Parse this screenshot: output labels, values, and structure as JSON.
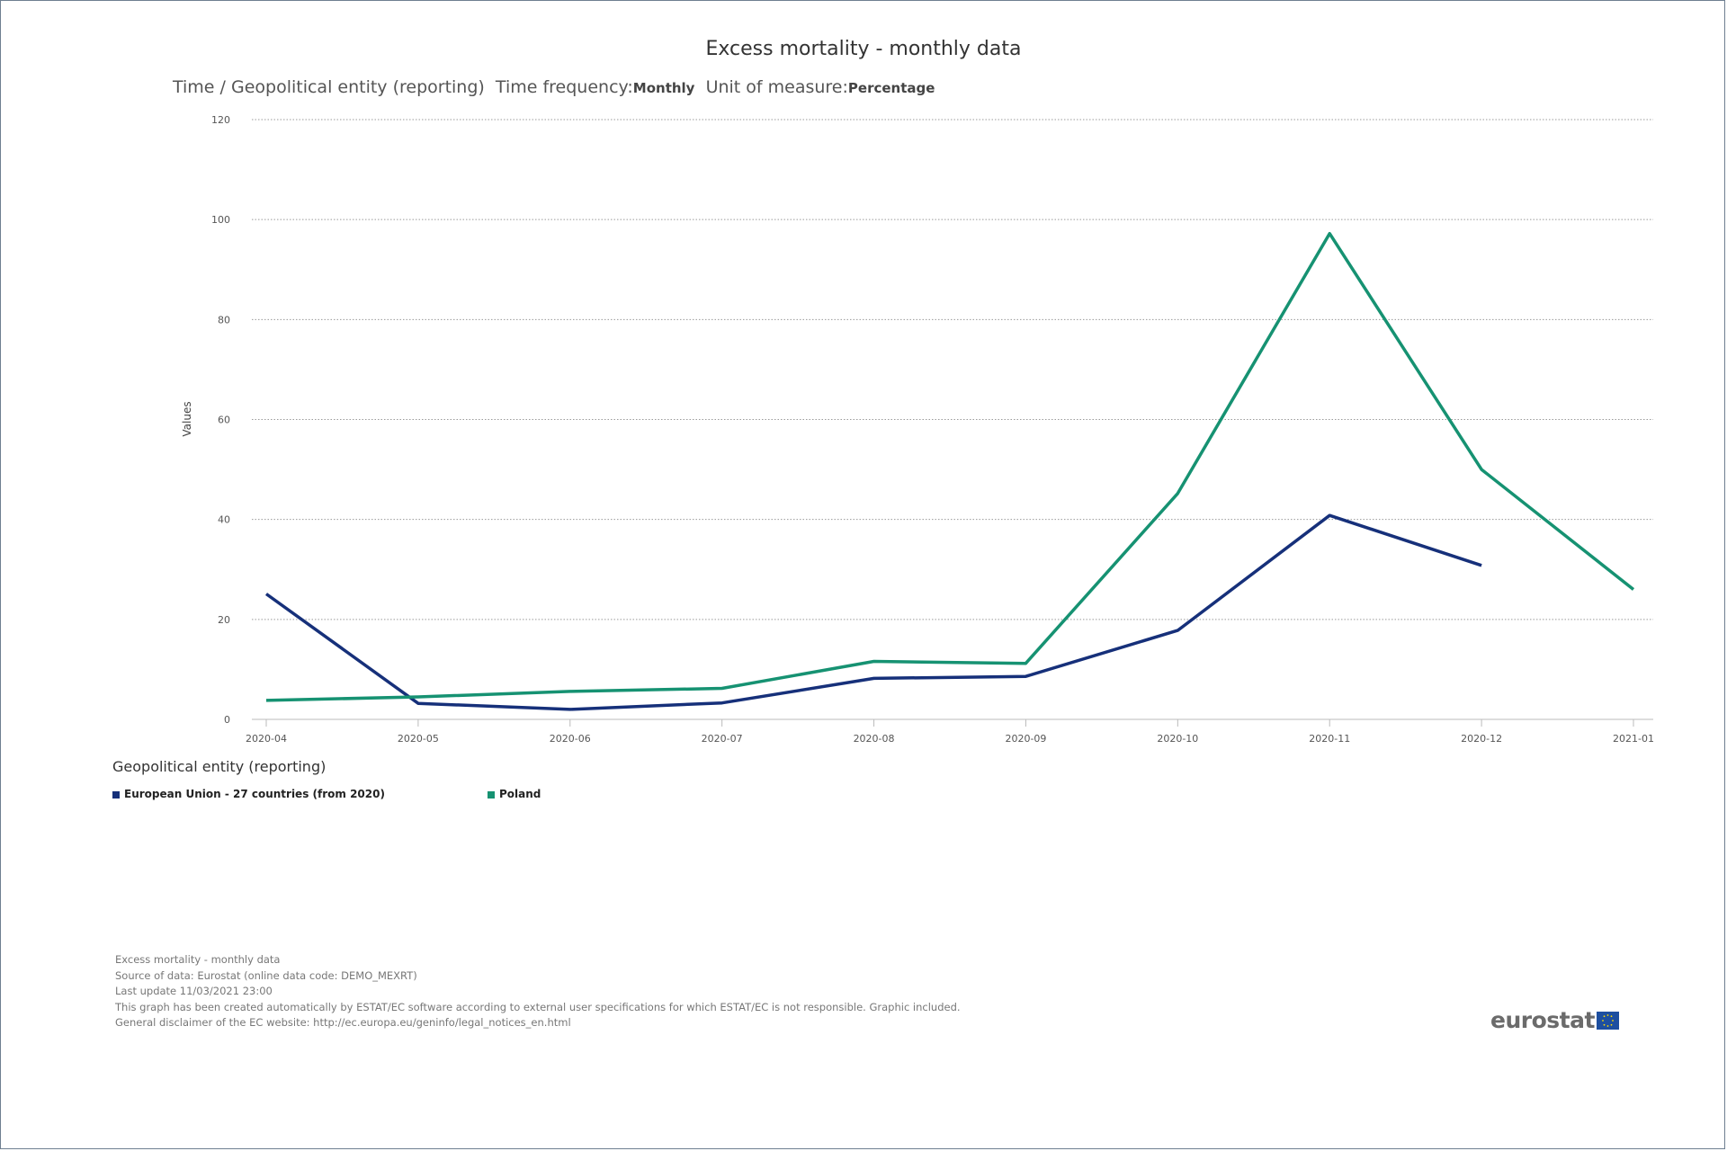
{
  "chart_data": {
    "type": "line",
    "title": "Excess mortality - monthly data",
    "subtitle": {
      "time_label": "Time / Geopolitical entity (reporting)",
      "freq_label": "Time frequency:",
      "freq_value": "Monthly",
      "unit_label": "Unit of measure:",
      "unit_value": "Percentage"
    },
    "ylabel": "Values",
    "ylim": [
      0,
      120
    ],
    "yticks": [
      0,
      20,
      40,
      60,
      80,
      100,
      120
    ],
    "grid": true,
    "x": [
      "2020-04",
      "2020-05",
      "2020-06",
      "2020-07",
      "2020-08",
      "2020-09",
      "2020-10",
      "2020-11",
      "2020-12",
      "2021-01"
    ],
    "series": [
      {
        "name": "European Union - 27 countries (from 2020)",
        "color": "#16307a",
        "values": [
          25.1,
          3.2,
          2.0,
          3.3,
          8.2,
          8.6,
          17.8,
          40.8,
          30.8,
          null
        ]
      },
      {
        "name": "Poland",
        "color": "#169272",
        "values": [
          3.8,
          4.5,
          5.6,
          6.2,
          11.6,
          11.2,
          45.2,
          97.2,
          50.0,
          26.0
        ]
      }
    ],
    "legend_title": "Geopolitical entity (reporting)",
    "legend_position": "bottom-left"
  },
  "footer": {
    "line1": "Excess mortality - monthly data",
    "line2": "Source of data: Eurostat (online data code: DEMO_MEXRT)",
    "line3": "Last update 11/03/2021 23:00",
    "line4": "This graph has been created automatically by ESTAT/EC software according to external user specifications for which ESTAT/EC is not responsible. Graphic included.",
    "line5": "General disclaimer of the EC website: http://ec.europa.eu/geninfo/legal_notices_en.html"
  },
  "logo": {
    "text": "eurostat",
    "icon": "eu-flag-icon"
  }
}
